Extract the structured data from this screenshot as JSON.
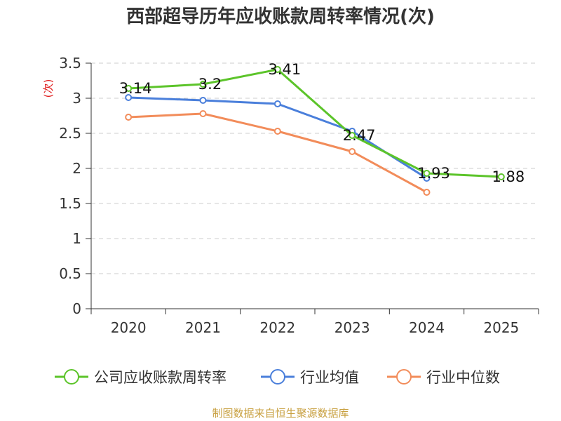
{
  "chart_data": {
    "type": "line",
    "title": "西部超导历年应收账款周转率情况(次)",
    "ylabel": "(次)",
    "xlabel": "",
    "ylim": [
      0,
      3.5
    ],
    "yticks": [
      "0",
      "0.5",
      "1",
      "1.5",
      "2",
      "2.5",
      "3",
      "3.5"
    ],
    "ytick_values": [
      0,
      0.5,
      1,
      1.5,
      2,
      2.5,
      3,
      3.5
    ],
    "categories": [
      "2020",
      "2021",
      "2022",
      "2023",
      "2024",
      "2025"
    ],
    "grid": true,
    "legend_position": "bottom",
    "series": [
      {
        "name": "公司应收账款周转率",
        "color": "#5cc42a",
        "values": [
          3.14,
          3.2,
          3.41,
          2.47,
          1.93,
          1.88
        ],
        "labels": [
          "3.14",
          "3.2",
          "3.41",
          "2.47",
          "1.93",
          "1.88"
        ]
      },
      {
        "name": "行业均值",
        "color": "#4a7fdb",
        "values": [
          3.01,
          2.97,
          2.92,
          2.53,
          1.86,
          null
        ]
      },
      {
        "name": "行业中位数",
        "color": "#f28c5a",
        "values": [
          2.73,
          2.78,
          2.53,
          2.24,
          1.66,
          null
        ]
      }
    ]
  },
  "source": "制图数据来自恒生聚源数据库"
}
